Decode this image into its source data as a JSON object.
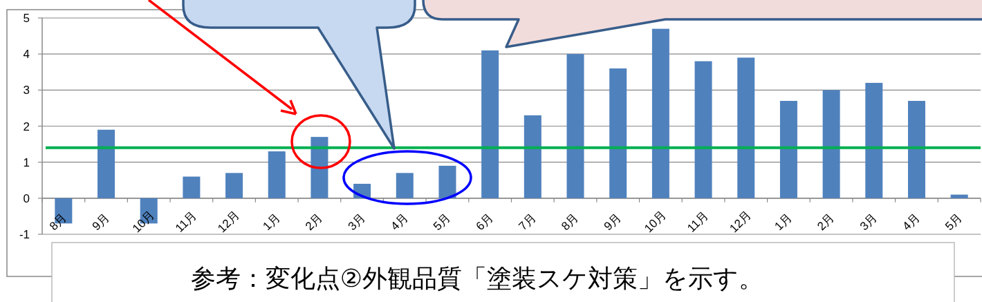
{
  "chart_data": {
    "type": "bar",
    "categories": [
      "8月",
      "9月",
      "10月",
      "11月",
      "12月",
      "1月",
      "2月",
      "3月",
      "4月",
      "5月",
      "6月",
      "7月",
      "8月",
      "9月",
      "10月",
      "11月",
      "12月",
      "1月",
      "2月",
      "3月",
      "4月",
      "5月"
    ],
    "values": [
      -0.7,
      1.9,
      -0.7,
      0.6,
      0.7,
      1.3,
      1.7,
      0.4,
      0.7,
      0.9,
      4.1,
      2.3,
      4.0,
      3.6,
      4.7,
      3.8,
      3.9,
      2.7,
      3.0,
      3.2,
      2.7,
      0.1
    ],
    "color": "#4f81bd",
    "ylim": [
      -1,
      5
    ],
    "yticks": [
      -1,
      0,
      1,
      2,
      3,
      4,
      5
    ],
    "grid": "y",
    "ref_lines": [
      {
        "axis": "y",
        "value": 1.4,
        "color": "#00b050"
      }
    ],
    "annotations": [
      "参考：変化点②外観品質「塗装スケ対策」を示す。"
    ]
  }
}
